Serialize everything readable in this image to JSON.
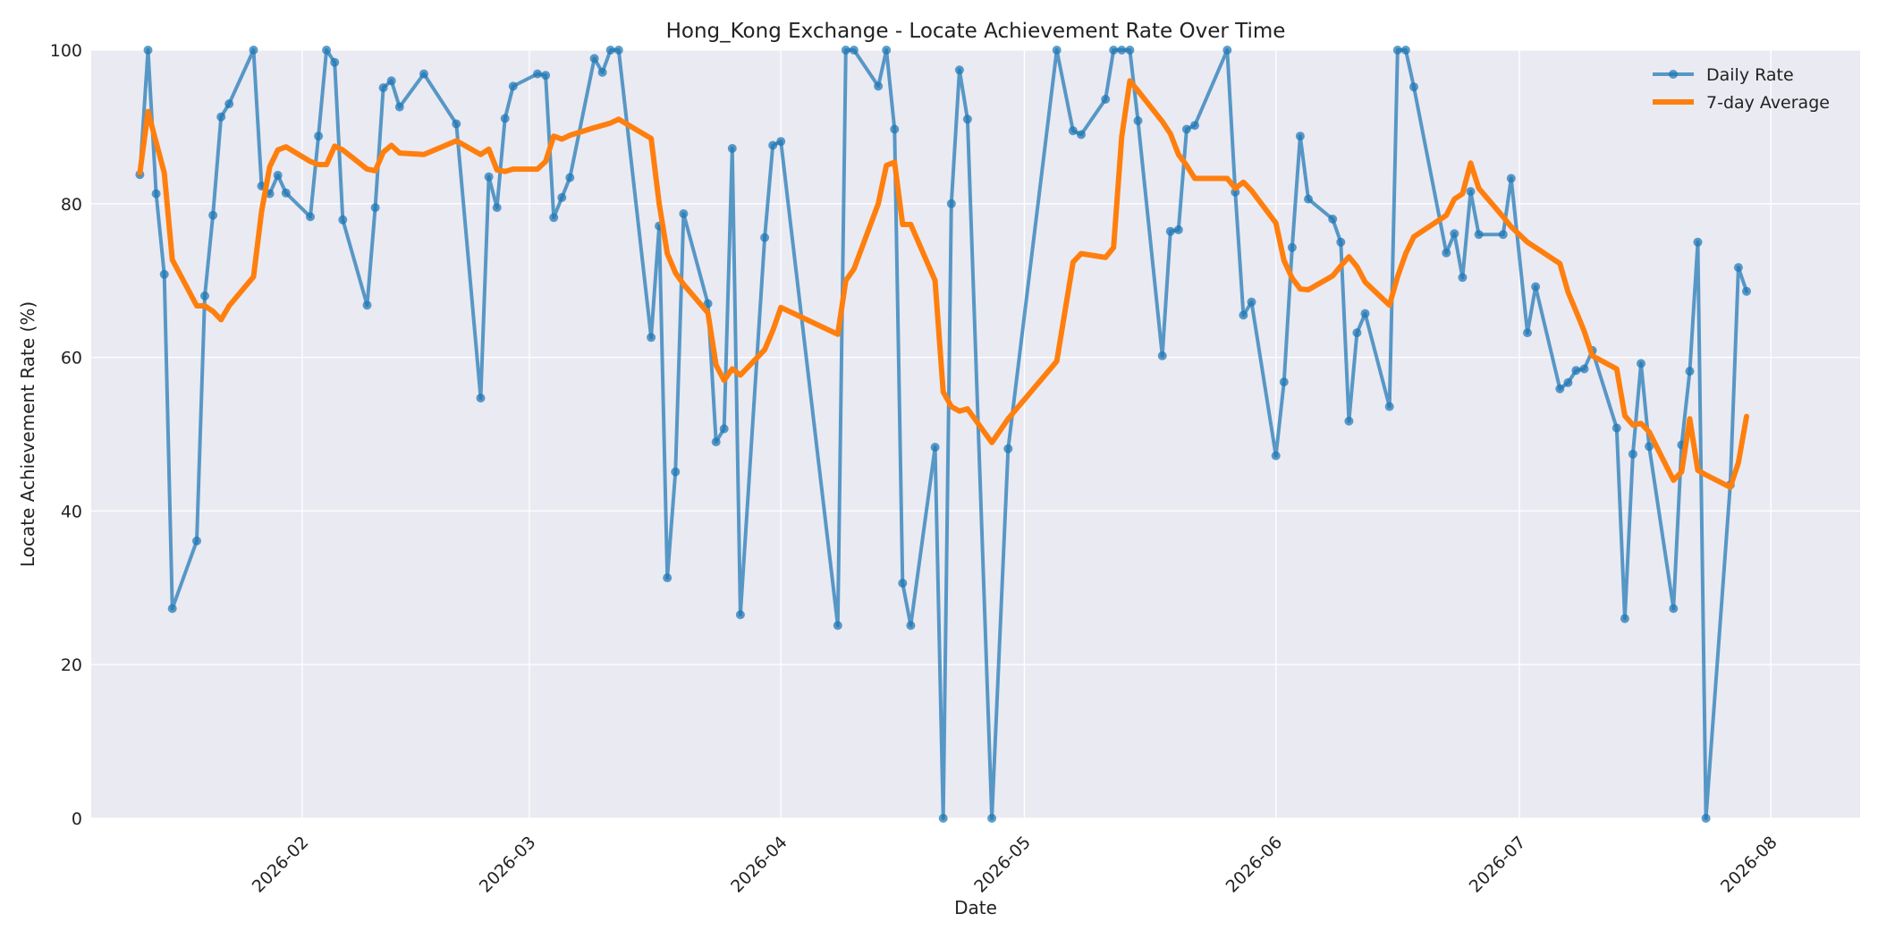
{
  "chart_data": {
    "type": "line",
    "title": "Hong_Kong Exchange - Locate Achievement Rate Over Time",
    "xlabel": "Date",
    "ylabel": "Locate Achievement Rate (%)",
    "xlim": [
      "2026-01-06",
      "2026-08-12"
    ],
    "ylim": [
      0,
      100
    ],
    "yticks": [
      0,
      20,
      40,
      60,
      80,
      100
    ],
    "xticks": [
      {
        "date": "2026-02-01",
        "label": "2026-02"
      },
      {
        "date": "2026-03-01",
        "label": "2026-03"
      },
      {
        "date": "2026-04-01",
        "label": "2026-04"
      },
      {
        "date": "2026-05-01",
        "label": "2026-05"
      },
      {
        "date": "2026-06-01",
        "label": "2026-06"
      },
      {
        "date": "2026-07-01",
        "label": "2026-07"
      },
      {
        "date": "2026-08-01",
        "label": "2026-08"
      }
    ],
    "grid": true,
    "legend_position": "top-right",
    "series": [
      {
        "name": "Daily Rate",
        "color": "#1f77b4",
        "points": [
          [
            "2026-01-12",
            83.8
          ],
          [
            "2026-01-13",
            100
          ],
          [
            "2026-01-14",
            81.3
          ],
          [
            "2026-01-15",
            70.8
          ],
          [
            "2026-01-16",
            27.3
          ],
          [
            "2026-01-19",
            36.1
          ],
          [
            "2026-01-20",
            68
          ],
          [
            "2026-01-21",
            78.5
          ],
          [
            "2026-01-22",
            91.3
          ],
          [
            "2026-01-23",
            93
          ],
          [
            "2026-01-26",
            100
          ],
          [
            "2026-01-27",
            82.3
          ],
          [
            "2026-01-28",
            81.3
          ],
          [
            "2026-01-29",
            83.7
          ],
          [
            "2026-01-30",
            81.4
          ],
          [
            "2026-02-02",
            78.3
          ],
          [
            "2026-02-03",
            88.8
          ],
          [
            "2026-02-04",
            100
          ],
          [
            "2026-02-05",
            98.4
          ],
          [
            "2026-02-06",
            77.9
          ],
          [
            "2026-02-09",
            66.8
          ],
          [
            "2026-02-10",
            79.5
          ],
          [
            "2026-02-11",
            95.1
          ],
          [
            "2026-02-12",
            96
          ],
          [
            "2026-02-13",
            92.6
          ],
          [
            "2026-02-16",
            96.9
          ],
          [
            "2026-02-20",
            90.4
          ],
          [
            "2026-02-23",
            54.7
          ],
          [
            "2026-02-24",
            83.5
          ],
          [
            "2026-02-25",
            79.5
          ],
          [
            "2026-02-26",
            91.1
          ],
          [
            "2026-02-27",
            95.3
          ],
          [
            "2026-03-02",
            96.9
          ],
          [
            "2026-03-03",
            96.7
          ],
          [
            "2026-03-04",
            78.2
          ],
          [
            "2026-03-05",
            80.8
          ],
          [
            "2026-03-06",
            83.4
          ],
          [
            "2026-03-09",
            98.9
          ],
          [
            "2026-03-10",
            97.1
          ],
          [
            "2026-03-11",
            100
          ],
          [
            "2026-03-12",
            100
          ],
          [
            "2026-03-16",
            62.6
          ],
          [
            "2026-03-17",
            77.1
          ],
          [
            "2026-03-18",
            31.3
          ],
          [
            "2026-03-19",
            45.1
          ],
          [
            "2026-03-20",
            78.7
          ],
          [
            "2026-03-23",
            67
          ],
          [
            "2026-03-24",
            49
          ],
          [
            "2026-03-25",
            50.7
          ],
          [
            "2026-03-26",
            87.2
          ],
          [
            "2026-03-27",
            26.5
          ],
          [
            "2026-03-30",
            75.6
          ],
          [
            "2026-03-31",
            87.6
          ],
          [
            "2026-04-01",
            88.1
          ],
          [
            "2026-04-08",
            25.1
          ],
          [
            "2026-04-09",
            100
          ],
          [
            "2026-04-10",
            100
          ],
          [
            "2026-04-13",
            95.3
          ],
          [
            "2026-04-14",
            100
          ],
          [
            "2026-04-15",
            89.7
          ],
          [
            "2026-04-16",
            30.6
          ],
          [
            "2026-04-17",
            25.1
          ],
          [
            "2026-04-20",
            48.3
          ],
          [
            "2026-04-21",
            0
          ],
          [
            "2026-04-22",
            80
          ],
          [
            "2026-04-23",
            97.4
          ],
          [
            "2026-04-24",
            91
          ],
          [
            "2026-04-27",
            0
          ],
          [
            "2026-04-29",
            48.1
          ],
          [
            "2026-05-05",
            100
          ],
          [
            "2026-05-07",
            89.5
          ],
          [
            "2026-05-08",
            89
          ],
          [
            "2026-05-11",
            93.6
          ],
          [
            "2026-05-12",
            100
          ],
          [
            "2026-05-13",
            100
          ],
          [
            "2026-05-14",
            100
          ],
          [
            "2026-05-15",
            90.8
          ],
          [
            "2026-05-18",
            60.2
          ],
          [
            "2026-05-19",
            76.4
          ],
          [
            "2026-05-20",
            76.6
          ],
          [
            "2026-05-21",
            89.7
          ],
          [
            "2026-05-22",
            90.2
          ],
          [
            "2026-05-26",
            100
          ],
          [
            "2026-05-27",
            81.5
          ],
          [
            "2026-05-28",
            65.5
          ],
          [
            "2026-05-29",
            67.2
          ],
          [
            "2026-06-01",
            47.2
          ],
          [
            "2026-06-02",
            56.8
          ],
          [
            "2026-06-03",
            74.3
          ],
          [
            "2026-06-04",
            88.8
          ],
          [
            "2026-06-05",
            80.6
          ],
          [
            "2026-06-08",
            78
          ],
          [
            "2026-06-09",
            75
          ],
          [
            "2026-06-10",
            51.7
          ],
          [
            "2026-06-11",
            63.2
          ],
          [
            "2026-06-12",
            65.7
          ],
          [
            "2026-06-15",
            53.6
          ],
          [
            "2026-06-16",
            100
          ],
          [
            "2026-06-17",
            100
          ],
          [
            "2026-06-18",
            95.2
          ],
          [
            "2026-06-22",
            73.6
          ],
          [
            "2026-06-23",
            76.1
          ],
          [
            "2026-06-24",
            70.4
          ],
          [
            "2026-06-25",
            81.6
          ],
          [
            "2026-06-26",
            76
          ],
          [
            "2026-06-29",
            76
          ],
          [
            "2026-06-30",
            83.3
          ],
          [
            "2026-07-02",
            63.2
          ],
          [
            "2026-07-03",
            69.2
          ],
          [
            "2026-07-06",
            55.9
          ],
          [
            "2026-07-07",
            56.7
          ],
          [
            "2026-07-08",
            58.3
          ],
          [
            "2026-07-09",
            58.5
          ],
          [
            "2026-07-10",
            60.9
          ],
          [
            "2026-07-13",
            50.8
          ],
          [
            "2026-07-14",
            26
          ],
          [
            "2026-07-15",
            47.4
          ],
          [
            "2026-07-16",
            59.2
          ],
          [
            "2026-07-17",
            48.4
          ],
          [
            "2026-07-20",
            27.3
          ],
          [
            "2026-07-21",
            48.6
          ],
          [
            "2026-07-22",
            58.2
          ],
          [
            "2026-07-23",
            75
          ],
          [
            "2026-07-24",
            0
          ],
          [
            "2026-07-27",
            43.4
          ],
          [
            "2026-07-28",
            71.7
          ],
          [
            "2026-07-29",
            68.6
          ]
        ]
      },
      {
        "name": "7-day Average",
        "color": "#ff7f0e",
        "points": [
          [
            "2026-01-12",
            84
          ],
          [
            "2026-01-13",
            92
          ],
          [
            "2026-01-14",
            88
          ],
          [
            "2026-01-15",
            84
          ],
          [
            "2026-01-16",
            72.7
          ],
          [
            "2026-01-19",
            66.7
          ],
          [
            "2026-01-20",
            66.7
          ],
          [
            "2026-01-21",
            66
          ],
          [
            "2026-01-22",
            64.9
          ],
          [
            "2026-01-23",
            66.7
          ],
          [
            "2026-01-26",
            70.5
          ],
          [
            "2026-01-27",
            79
          ],
          [
            "2026-01-28",
            84.8
          ],
          [
            "2026-01-29",
            87
          ],
          [
            "2026-01-30",
            87.4
          ],
          [
            "2026-02-02",
            85.5
          ],
          [
            "2026-02-03",
            85.1
          ],
          [
            "2026-02-04",
            85.1
          ],
          [
            "2026-02-05",
            87.5
          ],
          [
            "2026-02-06",
            87
          ],
          [
            "2026-02-09",
            84.5
          ],
          [
            "2026-02-10",
            84.3
          ],
          [
            "2026-02-11",
            86.7
          ],
          [
            "2026-02-12",
            87.6
          ],
          [
            "2026-02-13",
            86.6
          ],
          [
            "2026-02-16",
            86.4
          ],
          [
            "2026-02-20",
            88.2
          ],
          [
            "2026-02-23",
            86.4
          ],
          [
            "2026-02-24",
            87.1
          ],
          [
            "2026-02-25",
            84.4
          ],
          [
            "2026-02-26",
            84.2
          ],
          [
            "2026-02-27",
            84.5
          ],
          [
            "2026-03-02",
            84.5
          ],
          [
            "2026-03-03",
            85.5
          ],
          [
            "2026-03-04",
            88.8
          ],
          [
            "2026-03-05",
            88.4
          ],
          [
            "2026-03-06",
            88.9
          ],
          [
            "2026-03-09",
            89.9
          ],
          [
            "2026-03-10",
            90.2
          ],
          [
            "2026-03-11",
            90.5
          ],
          [
            "2026-03-12",
            91
          ],
          [
            "2026-03-16",
            88.5
          ],
          [
            "2026-03-17",
            80
          ],
          [
            "2026-03-18",
            73.5
          ],
          [
            "2026-03-19",
            71
          ],
          [
            "2026-03-20",
            69.5
          ],
          [
            "2026-03-23",
            65.8
          ],
          [
            "2026-03-24",
            59
          ],
          [
            "2026-03-25",
            57
          ],
          [
            "2026-03-26",
            58.5
          ],
          [
            "2026-03-27",
            57.7
          ],
          [
            "2026-03-30",
            61
          ],
          [
            "2026-03-31",
            63.5
          ],
          [
            "2026-04-01",
            66.5
          ],
          [
            "2026-04-08",
            63
          ],
          [
            "2026-04-09",
            70
          ],
          [
            "2026-04-10",
            71.5
          ],
          [
            "2026-04-13",
            80
          ],
          [
            "2026-04-14",
            85
          ],
          [
            "2026-04-15",
            85.4
          ],
          [
            "2026-04-16",
            77.3
          ],
          [
            "2026-04-17",
            77.3
          ],
          [
            "2026-04-20",
            70
          ],
          [
            "2026-04-21",
            55.5
          ],
          [
            "2026-04-22",
            53.6
          ],
          [
            "2026-04-23",
            53
          ],
          [
            "2026-04-24",
            53.3
          ],
          [
            "2026-04-27",
            48.9
          ],
          [
            "2026-04-29",
            52
          ],
          [
            "2026-05-05",
            59.5
          ],
          [
            "2026-05-07",
            72.4
          ],
          [
            "2026-05-08",
            73.5
          ],
          [
            "2026-05-11",
            73
          ],
          [
            "2026-05-12",
            74.3
          ],
          [
            "2026-05-13",
            88.7
          ],
          [
            "2026-05-14",
            96
          ],
          [
            "2026-05-15",
            94.7
          ],
          [
            "2026-05-18",
            90.7
          ],
          [
            "2026-05-19",
            89.1
          ],
          [
            "2026-05-20",
            86.4
          ],
          [
            "2026-05-21",
            85
          ],
          [
            "2026-05-22",
            83.3
          ],
          [
            "2026-05-26",
            83.3
          ],
          [
            "2026-05-27",
            82
          ],
          [
            "2026-05-28",
            82.8
          ],
          [
            "2026-05-29",
            81.7
          ],
          [
            "2026-06-01",
            77.5
          ],
          [
            "2026-06-02",
            72.6
          ],
          [
            "2026-06-03",
            70.3
          ],
          [
            "2026-06-04",
            68.9
          ],
          [
            "2026-06-05",
            68.8
          ],
          [
            "2026-06-08",
            70.6
          ],
          [
            "2026-06-09",
            71.9
          ],
          [
            "2026-06-10",
            73.1
          ],
          [
            "2026-06-11",
            71.8
          ],
          [
            "2026-06-12",
            69.8
          ],
          [
            "2026-06-15",
            66.8
          ],
          [
            "2026-06-16",
            70.5
          ],
          [
            "2026-06-17",
            73.5
          ],
          [
            "2026-06-18",
            75.7
          ],
          [
            "2026-06-22",
            78.5
          ],
          [
            "2026-06-23",
            80.6
          ],
          [
            "2026-06-24",
            81.3
          ],
          [
            "2026-06-25",
            85.3
          ],
          [
            "2026-06-26",
            82
          ],
          [
            "2026-06-29",
            78.3
          ],
          [
            "2026-06-30",
            77
          ],
          [
            "2026-07-02",
            75
          ],
          [
            "2026-07-03",
            74.3
          ],
          [
            "2026-07-06",
            72.2
          ],
          [
            "2026-07-07",
            68.5
          ],
          [
            "2026-07-08",
            66
          ],
          [
            "2026-07-09",
            63.4
          ],
          [
            "2026-07-10",
            60.2
          ],
          [
            "2026-07-13",
            58.5
          ],
          [
            "2026-07-14",
            52.4
          ],
          [
            "2026-07-15",
            51.2
          ],
          [
            "2026-07-16",
            51.4
          ],
          [
            "2026-07-17",
            50.3
          ],
          [
            "2026-07-20",
            44
          ],
          [
            "2026-07-21",
            45.1
          ],
          [
            "2026-07-22",
            52
          ],
          [
            "2026-07-23",
            45.3
          ],
          [
            "2026-07-24",
            44.7
          ],
          [
            "2026-07-27",
            43.1
          ],
          [
            "2026-07-28",
            46.3
          ],
          [
            "2026-07-29",
            52.3
          ]
        ]
      }
    ]
  }
}
